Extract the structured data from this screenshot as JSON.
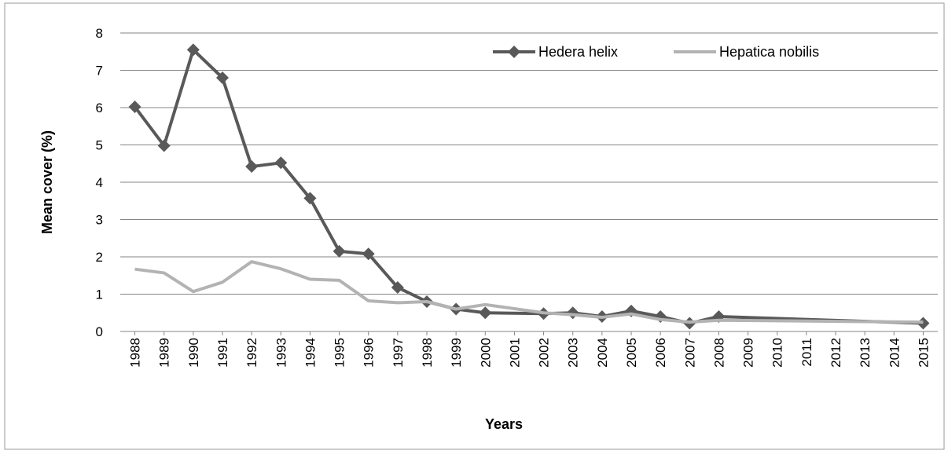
{
  "chart_data": {
    "type": "line",
    "x_label": "Years",
    "y_label": "Mean cover (%)",
    "x": [
      1988,
      1989,
      1990,
      1991,
      1992,
      1993,
      1994,
      1995,
      1996,
      1997,
      1998,
      1999,
      2000,
      2002,
      2003,
      2004,
      2005,
      2006,
      2007,
      2008,
      2015
    ],
    "xlim": [
      1987.5,
      2015.5
    ],
    "xticks": [
      1988,
      1989,
      1990,
      1991,
      1992,
      1993,
      1994,
      1995,
      1996,
      1997,
      1998,
      1999,
      2000,
      2001,
      2002,
      2003,
      2004,
      2005,
      2006,
      2007,
      2008,
      2009,
      2010,
      2011,
      2012,
      2013,
      2014,
      2015
    ],
    "ylim": [
      0,
      8
    ],
    "yticks": [
      0,
      1,
      2,
      3,
      4,
      5,
      6,
      7,
      8
    ],
    "grid": true,
    "legend": "top",
    "series": [
      {
        "name": "Hedera helix",
        "color": "#595959",
        "marker": "diamond",
        "values": [
          6.02,
          4.98,
          7.55,
          6.8,
          4.42,
          4.52,
          3.57,
          2.15,
          2.08,
          1.18,
          0.8,
          0.6,
          0.5,
          0.48,
          0.5,
          0.4,
          0.55,
          0.4,
          0.22,
          0.4,
          0.22
        ]
      },
      {
        "name": "Hepatica nobilis",
        "color": "#b3b3b3",
        "marker": "none",
        "values": [
          1.67,
          1.57,
          1.07,
          1.32,
          1.87,
          1.68,
          1.4,
          1.37,
          0.82,
          0.77,
          0.8,
          0.6,
          0.72,
          0.5,
          0.45,
          0.38,
          0.47,
          0.32,
          0.25,
          0.3,
          0.25
        ]
      }
    ]
  }
}
